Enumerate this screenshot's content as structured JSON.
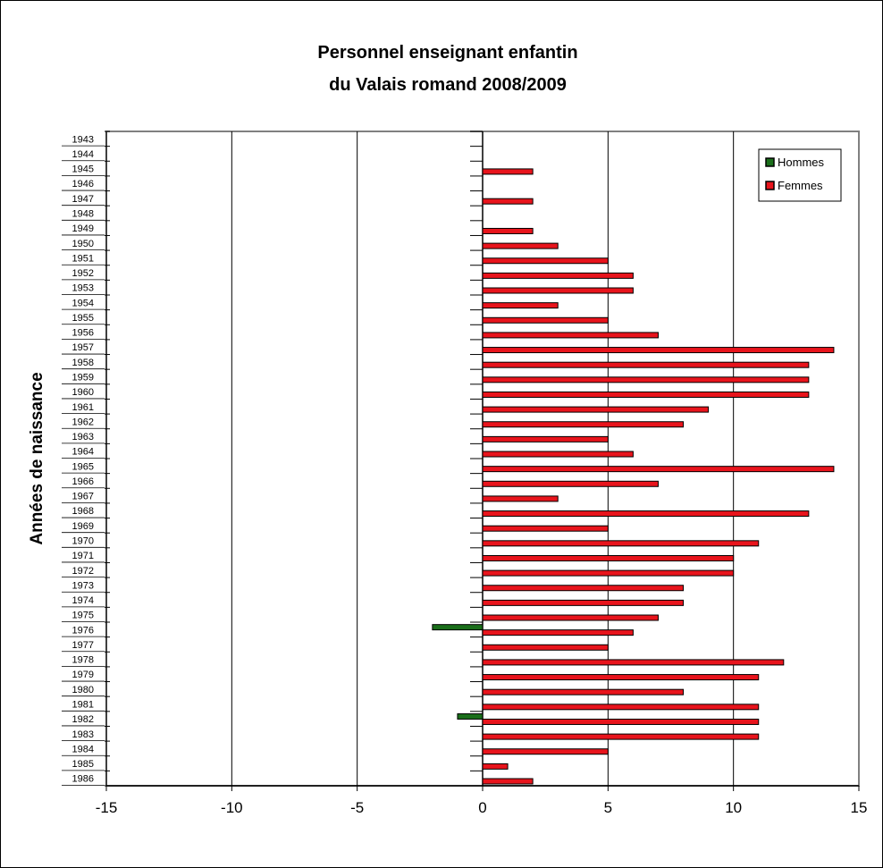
{
  "chart_data": {
    "type": "bar",
    "orientation": "horizontal",
    "title": [
      "Personnel enseignant enfantin",
      "du Valais romand 2008/2009"
    ],
    "xlabel": "",
    "ylabel": "Années de naissance",
    "xlim": [
      -15,
      15
    ],
    "xticks": [
      -15,
      -10,
      -5,
      0,
      5,
      10,
      15
    ],
    "grid": "vertical",
    "legend_position": "top-right",
    "categories": [
      "1943",
      "1944",
      "1945",
      "1946",
      "1947",
      "1948",
      "1949",
      "1950",
      "1951",
      "1952",
      "1953",
      "1954",
      "1955",
      "1956",
      "1957",
      "1958",
      "1959",
      "1960",
      "1961",
      "1962",
      "1963",
      "1964",
      "1965",
      "1966",
      "1967",
      "1968",
      "1969",
      "1970",
      "1971",
      "1972",
      "1973",
      "1974",
      "1975",
      "1976",
      "1977",
      "1978",
      "1979",
      "1980",
      "1981",
      "1982",
      "1983",
      "1984",
      "1985",
      "1986"
    ],
    "series": [
      {
        "name": "Hommes",
        "color": "#1a6e1a",
        "values": [
          0,
          0,
          0,
          0,
          0,
          0,
          0,
          0,
          0,
          0,
          0,
          0,
          0,
          0,
          0,
          0,
          0,
          0,
          0,
          0,
          0,
          0,
          0,
          0,
          0,
          0,
          0,
          0,
          0,
          0,
          0,
          0,
          0,
          -2,
          0,
          0,
          0,
          0,
          0,
          -1,
          0,
          0,
          0,
          0
        ]
      },
      {
        "name": "Femmes",
        "color": "#e8141c",
        "values": [
          0,
          0,
          2,
          0,
          2,
          0,
          2,
          3,
          5,
          6,
          6,
          3,
          5,
          7,
          14,
          13,
          13,
          13,
          9,
          8,
          5,
          6,
          14,
          7,
          3,
          13,
          5,
          11,
          10,
          10,
          8,
          8,
          7,
          6,
          5,
          12,
          11,
          8,
          11,
          11,
          11,
          5,
          1,
          2
        ]
      }
    ]
  }
}
